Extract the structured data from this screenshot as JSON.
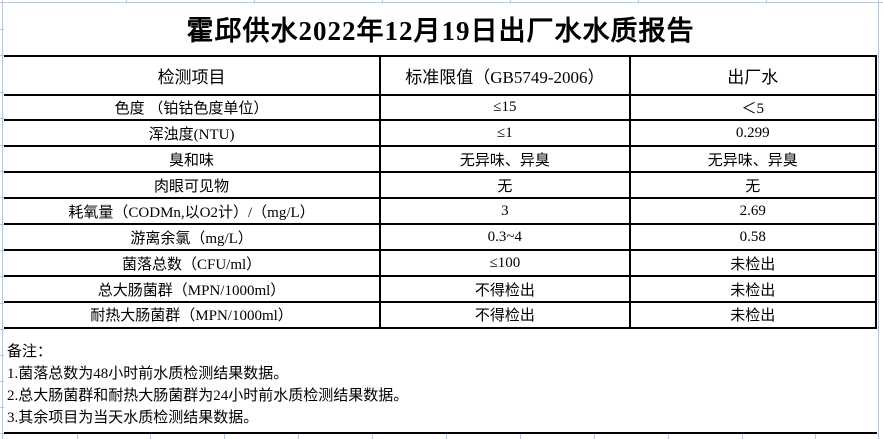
{
  "page": {
    "title": "霍邱供水2022年12月19日出厂水水质报告"
  },
  "table": {
    "columns": [
      "检测项目",
      "标准限值（GB5749-2006）",
      "出厂水"
    ],
    "rows": [
      {
        "item": "色度 （铂钴色度单位）",
        "limit": "≤15",
        "value": "＜5"
      },
      {
        "item": "浑浊度(NTU)",
        "limit": "≤1",
        "value": "0.299"
      },
      {
        "item": "臭和味",
        "limit": "无异味、异臭",
        "value": "无异味、异臭"
      },
      {
        "item": "肉眼可见物",
        "limit": "无",
        "value": "无"
      },
      {
        "item": "耗氧量（CODMn,以O2计）/（mg/L）",
        "limit": "3",
        "value": "2.69"
      },
      {
        "item": "游离余氯（mg/L）",
        "limit": "0.3~4",
        "value": "0.58"
      },
      {
        "item": "菌落总数（CFU/ml）",
        "limit": "≤100",
        "value": "未检出"
      },
      {
        "item": "总大肠菌群（MPN/1000ml）",
        "limit": "不得检出",
        "value": "未检出"
      },
      {
        "item": "耐热大肠菌群（MPN/1000ml）",
        "limit": "不得检出",
        "value": "未检出"
      }
    ]
  },
  "notes": {
    "label": "备注：",
    "items": [
      "1.菌落总数为48小时前水质检测结果数据。",
      "2.总大肠菌群和耐热大肠菌群为24小时前水质检测结果数据。",
      "3.其余项目为当天水质检测结果数据。"
    ]
  },
  "colors": {
    "background": "#ffffff",
    "text": "#000000",
    "table_border": "#000000",
    "gridline": "#b9c6da"
  }
}
